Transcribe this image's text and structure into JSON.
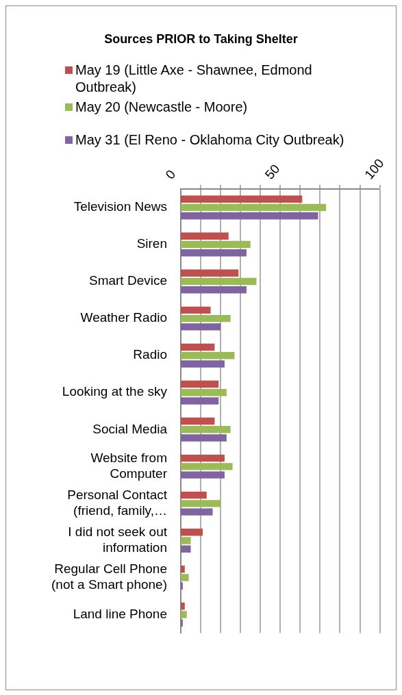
{
  "chart_data": {
    "type": "bar",
    "orientation": "horizontal",
    "title": "Sources PRIOR to Taking Shelter",
    "categories": [
      "Television News",
      "Siren",
      "Smart Device",
      "Weather Radio",
      "Radio",
      "Looking at the sky",
      "Social Media",
      "Website from Computer",
      "Personal Contact (friend, family,…",
      "I did not seek out information",
      "Regular Cell Phone (not a Smart phone)",
      "Land line Phone"
    ],
    "series": [
      {
        "name": "May 19 (Little Axe - Shawnee, Edmond Outbreak)",
        "color": "#c0504d",
        "values": [
          61,
          24,
          29,
          15,
          17,
          19,
          17,
          22,
          13,
          11,
          2,
          2
        ]
      },
      {
        "name": "May 20 (Newcastle - Moore)",
        "color": "#9bbb59",
        "values": [
          73,
          35,
          38,
          25,
          27,
          23,
          25,
          26,
          20,
          5,
          4,
          3
        ]
      },
      {
        "name": "May 31 (El Reno - Oklahoma City Outbreak)",
        "color": "#8064a2",
        "values": [
          69,
          33,
          33,
          20,
          22,
          19,
          23,
          22,
          16,
          5,
          1,
          1
        ]
      }
    ],
    "xlim": [
      0,
      100
    ],
    "xticks": [
      0,
      {
        "value": 10,
        "label": null
      },
      {
        "value": 20,
        "label": null
      },
      {
        "value": 30,
        "label": null
      },
      {
        "value": 40,
        "label": null
      },
      50,
      {
        "value": 60,
        "label": null
      },
      {
        "value": 70,
        "label": null
      },
      {
        "value": 80,
        "label": null
      },
      {
        "value": 90,
        "label": null
      },
      100
    ],
    "grid": "x",
    "legend": "top"
  }
}
